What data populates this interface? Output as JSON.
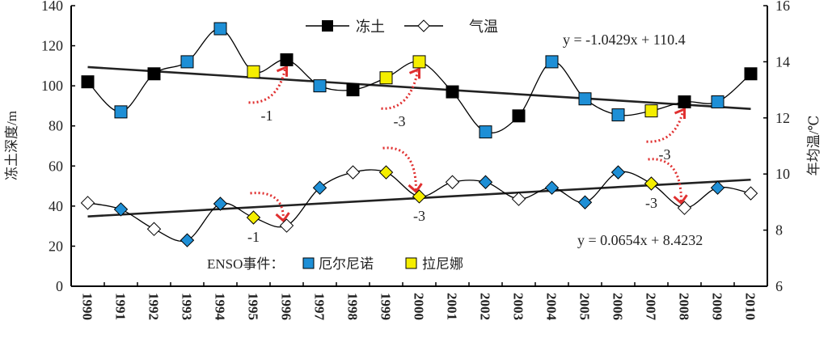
{
  "chart_data": {
    "type": "line",
    "x": [
      1990,
      1991,
      1992,
      1993,
      1994,
      1995,
      1996,
      1997,
      1998,
      1999,
      2000,
      2001,
      2002,
      2003,
      2004,
      2005,
      2006,
      2007,
      2008,
      2009,
      2010
    ],
    "y_left": {
      "label": "冻土深度/m",
      "range": [
        0,
        140
      ],
      "ticks": [
        0,
        20,
        40,
        60,
        80,
        100,
        120,
        140
      ]
    },
    "y_right": {
      "label": "年均温/℃",
      "range": [
        6,
        16
      ],
      "ticks": [
        6,
        8,
        10,
        12,
        14,
        16
      ]
    },
    "legend": {
      "position": "top",
      "items": [
        "冻土",
        "气温"
      ]
    },
    "series": [
      {
        "name": "冻土",
        "axis": "left",
        "marker": "square",
        "values": [
          102,
          87,
          106,
          112,
          128.5,
          107,
          113,
          100,
          98,
          104,
          112,
          97,
          77,
          85,
          112,
          93.5,
          85.5,
          87.5,
          92,
          92,
          106
        ],
        "enso": [
          "none",
          "elnino",
          "none",
          "elnino",
          "elnino",
          "lanina",
          "none",
          "elnino",
          "none",
          "lanina",
          "lanina",
          "none",
          "elnino",
          "none",
          "elnino",
          "elnino",
          "elnino",
          "lanina",
          "none",
          "elnino",
          "none"
        ],
        "trend": {
          "label": "y = -1.0429x + 110.4",
          "slope": -1.0429,
          "intercept": 110.4
        }
      },
      {
        "name": "气温",
        "axis": "right",
        "marker": "diamond",
        "values": [
          8.97,
          8.74,
          8.04,
          7.64,
          8.94,
          8.45,
          8.16,
          9.51,
          10.06,
          10.06,
          9.2,
          9.71,
          9.71,
          9.11,
          9.51,
          8.99,
          10.06,
          9.66,
          8.79,
          9.51,
          9.31
        ],
        "enso": [
          "none",
          "elnino",
          "none",
          "elnino",
          "elnino",
          "lanina",
          "none",
          "elnino",
          "none",
          "lanina",
          "lanina",
          "none",
          "elnino",
          "none",
          "elnino",
          "elnino",
          "elnino",
          "lanina",
          "none",
          "elnino",
          "none"
        ],
        "trend": {
          "label": "y = 0.0654x + 8.4232",
          "slope": 0.0654,
          "intercept": 8.4232
        }
      }
    ],
    "lag_annotations": [
      {
        "series": "冻土",
        "from": 1995,
        "to": 1996,
        "label": "-1"
      },
      {
        "series": "冻土",
        "from": 1999,
        "to": 2000,
        "label": "-3"
      },
      {
        "series": "冻土",
        "from": 2007,
        "to": 2008,
        "label": "-3"
      },
      {
        "series": "气温",
        "from": 1995,
        "to": 1996,
        "label": "-1"
      },
      {
        "series": "气温",
        "from": 1999,
        "to": 2000,
        "label": "-3"
      },
      {
        "series": "气温",
        "from": 2007,
        "to": 2008,
        "label": "-3"
      }
    ],
    "enso_legend": {
      "title": "ENSO事件：",
      "elnino": "厄尔尼诺",
      "lanina": "拉尼娜"
    },
    "colors": {
      "elnino": "#1e8fd6",
      "lanina": "#f5ee00",
      "none_soil": "#000000",
      "none_temp": "#ffffff",
      "arrow": "#e03030"
    }
  }
}
